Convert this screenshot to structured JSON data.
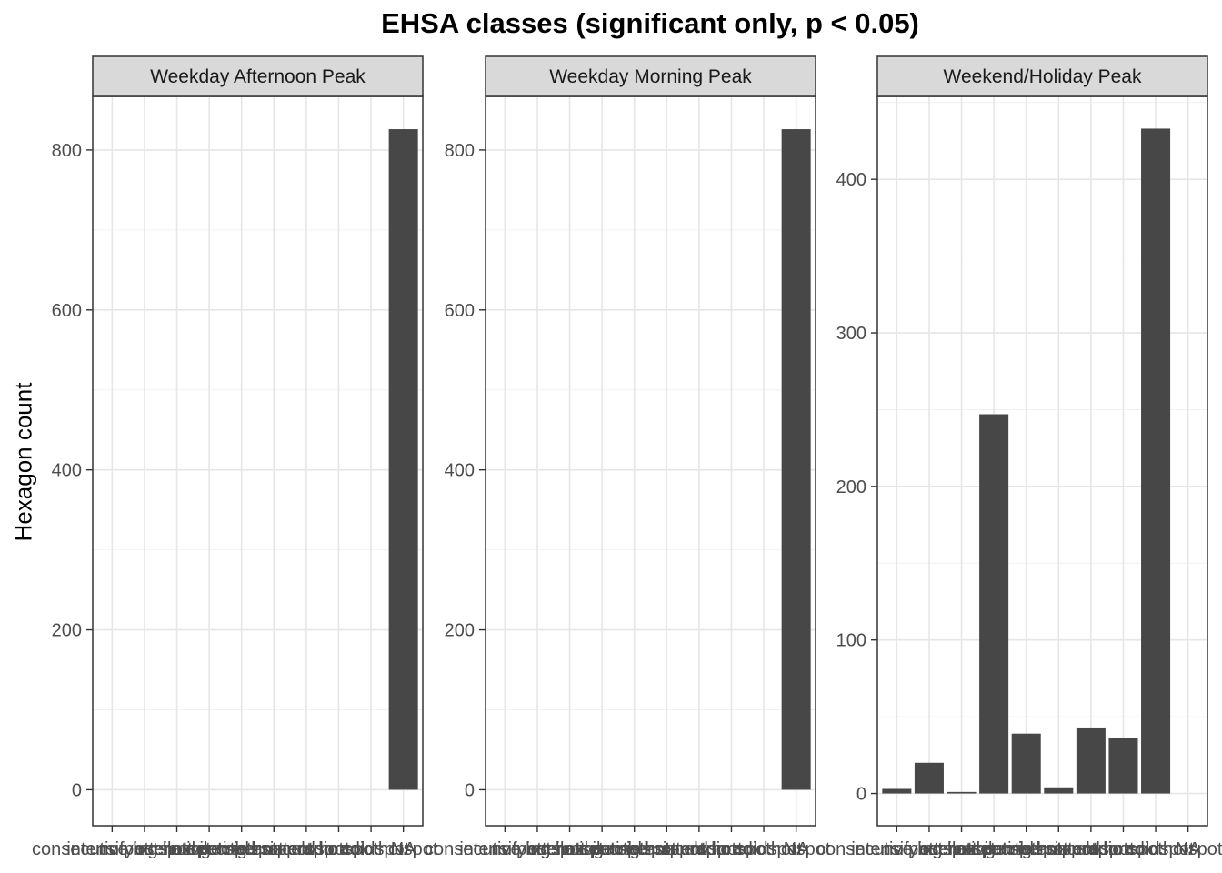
{
  "chart_data": {
    "type": "bar",
    "title": "EHSA classes (significant only, p < 0.05)",
    "xlabel": "",
    "ylabel": "Hexagon count",
    "grid": true,
    "categories": [
      "consecutive hotspot",
      "intensifying hotspot",
      "no pattern detected",
      "oscilating coldspot",
      "oscilating hotspot",
      "persistent coldspot",
      "persistent hotspot",
      "sporadic coldspot",
      "sporadic hotspot",
      "NA"
    ],
    "panels": [
      {
        "name": "Weekday Afternoon Peak",
        "ylim": [
          -45,
          867
        ],
        "yticks": [
          0,
          200,
          400,
          600,
          800
        ],
        "values": [
          0,
          0,
          0,
          0,
          0,
          0,
          0,
          0,
          0,
          826
        ]
      },
      {
        "name": "Weekday Morning Peak",
        "ylim": [
          -45,
          867
        ],
        "yticks": [
          0,
          200,
          400,
          600,
          800
        ],
        "values": [
          0,
          0,
          0,
          0,
          0,
          0,
          0,
          0,
          0,
          826
        ]
      },
      {
        "name": "Weekend/Holiday Peak",
        "ylim": [
          -21,
          454
        ],
        "yticks": [
          0,
          100,
          200,
          300,
          400
        ],
        "values": [
          3,
          20,
          1,
          247,
          39,
          4,
          43,
          36,
          433,
          0
        ]
      }
    ],
    "colors": {
      "bar": "#474747",
      "panel_border": "#333333",
      "grid_major": "#e6e6e6",
      "grid_minor": "#f2f2f2",
      "strip_fill": "#d9d9d9",
      "tick_text": "#4d4d4d"
    }
  }
}
